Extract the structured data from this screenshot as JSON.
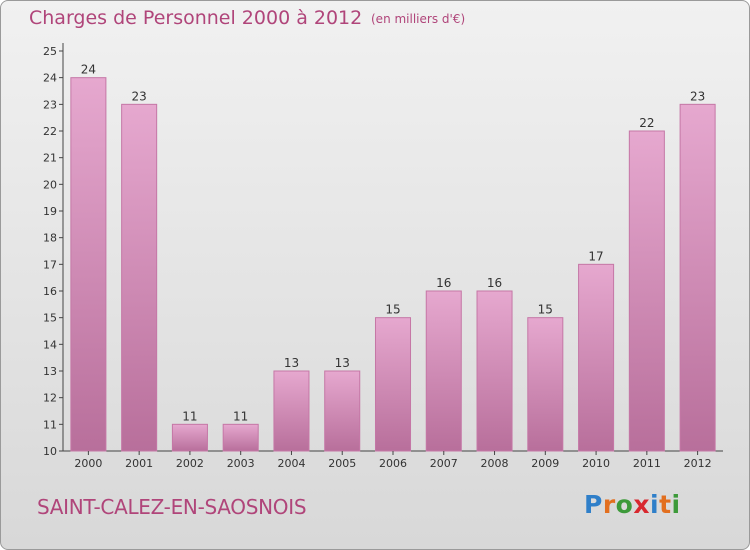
{
  "header": {
    "title": "Charges de Personnel 2000 à 2012",
    "subtitle": "(en milliers d'€)"
  },
  "footer": {
    "commune": "SAINT-CALEZ-EN-SAOSNOIS",
    "brand_letters": [
      "P",
      "r",
      "o",
      "x",
      "i",
      "t",
      "i"
    ],
    "brand_colors": [
      "#2f7fc9",
      "#e26f1f",
      "#3d9a3a",
      "#d8282f",
      "#2f7fc9",
      "#e26f1f",
      "#3d9a3a"
    ]
  },
  "colors": {
    "bar": "#d694be",
    "bar_edge": "#c577a6",
    "text": "#b0457a",
    "axis": "#444444"
  },
  "chart_data": {
    "type": "bar",
    "categories": [
      "2000",
      "2001",
      "2002",
      "2003",
      "2004",
      "2005",
      "2006",
      "2007",
      "2008",
      "2009",
      "2010",
      "2011",
      "2012"
    ],
    "values": [
      24,
      23,
      11,
      11,
      13,
      13,
      15,
      16,
      16,
      15,
      17,
      22,
      23
    ],
    "title": "Charges de Personnel 2000 à 2012",
    "subtitle": "(en milliers d'€)",
    "ylim": [
      10,
      25
    ],
    "yticks": [
      10,
      11,
      12,
      13,
      14,
      15,
      16,
      17,
      18,
      19,
      20,
      21,
      22,
      23,
      24,
      25
    ],
    "grid": false,
    "data_labels": true
  }
}
